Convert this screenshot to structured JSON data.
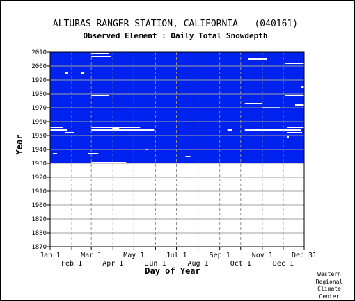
{
  "chart_data": {
    "type": "heatmap",
    "title": "ALTURAS RANGER STATION, CALIFORNIA   (040161)",
    "subtitle": "Observed Element : Daily Total Snowdepth",
    "xlabel": "Day of Year",
    "ylabel": "Year",
    "xlim": [
      1,
      365
    ],
    "ylim": [
      1870,
      2010
    ],
    "grid": true,
    "y_ticks": [
      1870,
      1880,
      1890,
      1900,
      1910,
      1920,
      1930,
      1940,
      1950,
      1960,
      1970,
      1980,
      1990,
      2000,
      2010
    ],
    "x_ticks_top_row": [
      {
        "label": "Jan 1",
        "day": 1
      },
      {
        "label": "Mar 1",
        "day": 60
      },
      {
        "label": "May 1",
        "day": 121
      },
      {
        "label": "Jul 1",
        "day": 182
      },
      {
        "label": "Sep 1",
        "day": 244
      },
      {
        "label": "Nov 1",
        "day": 305
      },
      {
        "label": "Dec 31",
        "day": 365
      }
    ],
    "x_ticks_bottom_row": [
      {
        "label": "Feb 1",
        "day": 32
      },
      {
        "label": "Apr 1",
        "day": 91
      },
      {
        "label": "Jun 1",
        "day": 152
      },
      {
        "label": "Aug 1",
        "day": 213
      },
      {
        "label": "Oct 1",
        "day": 274
      },
      {
        "label": "Dec 1",
        "day": 335
      }
    ],
    "data_color": "#0022ee",
    "missing_color": "#ffffff",
    "data_coverage": {
      "start_year": 1931,
      "end_year": 2010
    },
    "missing_gaps": [
      {
        "year": 1930.5,
        "day_start": 60,
        "day_end": 110
      },
      {
        "year": 1935,
        "day_start": 195,
        "day_end": 202
      },
      {
        "year": 1937,
        "day_start": 5,
        "day_end": 11
      },
      {
        "year": 1937,
        "day_start": 55,
        "day_end": 70
      },
      {
        "year": 1940,
        "day_start": 138,
        "day_end": 141
      },
      {
        "year": 1949,
        "day_start": 340,
        "day_end": 343
      },
      {
        "year": 1952,
        "day_start": 22,
        "day_end": 35
      },
      {
        "year": 1952,
        "day_start": 340,
        "day_end": 362
      },
      {
        "year": 1954,
        "day_start": 1,
        "day_end": 25
      },
      {
        "year": 1954,
        "day_start": 60,
        "day_end": 150
      },
      {
        "year": 1954,
        "day_start": 255,
        "day_end": 262
      },
      {
        "year": 1954,
        "day_start": 280,
        "day_end": 360
      },
      {
        "year": 1955,
        "day_start": 90,
        "day_end": 100
      },
      {
        "year": 1956,
        "day_start": 1,
        "day_end": 20
      },
      {
        "year": 1956,
        "day_start": 60,
        "day_end": 130
      },
      {
        "year": 1956,
        "day_start": 340,
        "day_end": 365
      },
      {
        "year": 1972,
        "day_start": 352,
        "day_end": 365
      },
      {
        "year": 1970,
        "day_start": 305,
        "day_end": 330
      },
      {
        "year": 1973,
        "day_start": 280,
        "day_end": 305
      },
      {
        "year": 1979,
        "day_start": 60,
        "day_end": 85
      },
      {
        "year": 1979,
        "day_start": 338,
        "day_end": 365
      },
      {
        "year": 1985,
        "day_start": 360,
        "day_end": 365
      },
      {
        "year": 1995,
        "day_start": 22,
        "day_end": 26
      },
      {
        "year": 1995,
        "day_start": 45,
        "day_end": 50
      },
      {
        "year": 2002,
        "day_start": 338,
        "day_end": 365
      },
      {
        "year": 2005,
        "day_start": 285,
        "day_end": 312
      },
      {
        "year": 2007,
        "day_start": 60,
        "day_end": 88
      },
      {
        "year": 2009,
        "day_start": 60,
        "day_end": 85
      }
    ]
  },
  "credit": {
    "line1": "Western",
    "line2": "Regional",
    "line3": "Climate",
    "line4": "Center"
  }
}
